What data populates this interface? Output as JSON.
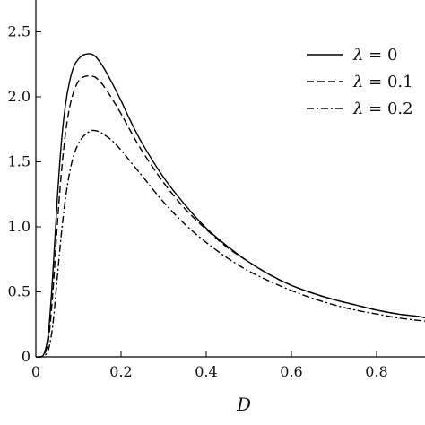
{
  "chart_data": {
    "type": "line",
    "title": "",
    "xlabel": "D",
    "ylabel": "",
    "xlim": [
      0,
      0.93
    ],
    "ylim": [
      0,
      2.6
    ],
    "x_ticks": [
      0,
      0.2,
      0.4,
      0.6,
      0.8
    ],
    "x_tick_labels": [
      "0",
      "0.2",
      "0.4",
      "0.6",
      "0.8"
    ],
    "y_ticks": [
      0,
      0.5,
      1.0,
      1.5,
      2.0,
      2.5
    ],
    "y_tick_labels": [
      "0",
      "0.5",
      "1.0",
      "1.5",
      "2.0",
      "2.5"
    ],
    "grid": false,
    "legend_position": "top-right",
    "series": [
      {
        "name": "λ = 0",
        "legend_symbol": "λ",
        "legend_value": "= 0",
        "line_style": "solid",
        "color": "#000000",
        "x": [
          0,
          0.01,
          0.02,
          0.03,
          0.04,
          0.05,
          0.06,
          0.07,
          0.08,
          0.09,
          0.1,
          0.11,
          0.12,
          0.13,
          0.14,
          0.15,
          0.16,
          0.18,
          0.2,
          0.22,
          0.25,
          0.3,
          0.35,
          0.4,
          0.45,
          0.5,
          0.55,
          0.6,
          0.65,
          0.7,
          0.75,
          0.8,
          0.85,
          0.9,
          0.93
        ],
        "y": [
          0,
          0.0,
          0.03,
          0.2,
          0.65,
          1.2,
          1.65,
          1.95,
          2.13,
          2.24,
          2.29,
          2.32,
          2.33,
          2.33,
          2.31,
          2.27,
          2.22,
          2.1,
          1.97,
          1.83,
          1.64,
          1.38,
          1.17,
          0.99,
          0.85,
          0.73,
          0.63,
          0.55,
          0.49,
          0.44,
          0.4,
          0.36,
          0.33,
          0.31,
          0.29
        ]
      },
      {
        "name": "λ = 0.1",
        "legend_symbol": "λ",
        "legend_value": "= 0.1",
        "line_style": "dashed",
        "color": "#000000",
        "x": [
          0,
          0.01,
          0.02,
          0.03,
          0.04,
          0.05,
          0.06,
          0.07,
          0.08,
          0.09,
          0.1,
          0.11,
          0.12,
          0.13,
          0.14,
          0.15,
          0.16,
          0.18,
          0.2,
          0.22,
          0.25,
          0.3,
          0.35,
          0.4,
          0.45,
          0.5,
          0.55,
          0.6,
          0.65,
          0.7,
          0.75,
          0.8,
          0.85,
          0.9,
          0.93
        ],
        "y": [
          0,
          0.0,
          0.02,
          0.14,
          0.5,
          1.0,
          1.42,
          1.73,
          1.93,
          2.05,
          2.12,
          2.15,
          2.16,
          2.16,
          2.15,
          2.12,
          2.08,
          1.98,
          1.87,
          1.75,
          1.58,
          1.34,
          1.14,
          0.98,
          0.84,
          0.73,
          0.63,
          0.55,
          0.49,
          0.44,
          0.4,
          0.36,
          0.33,
          0.31,
          0.29
        ]
      },
      {
        "name": "λ = 0.2",
        "legend_symbol": "λ",
        "legend_value": "= 0.2",
        "line_style": "dashdot",
        "color": "#000000",
        "x": [
          0,
          0.01,
          0.02,
          0.03,
          0.04,
          0.05,
          0.06,
          0.07,
          0.08,
          0.09,
          0.1,
          0.11,
          0.12,
          0.13,
          0.14,
          0.15,
          0.16,
          0.18,
          0.2,
          0.22,
          0.25,
          0.3,
          0.35,
          0.4,
          0.45,
          0.5,
          0.55,
          0.6,
          0.65,
          0.7,
          0.75,
          0.8,
          0.85,
          0.9,
          0.93
        ],
        "y": [
          0,
          0.0,
          0.01,
          0.06,
          0.25,
          0.6,
          0.95,
          1.23,
          1.43,
          1.56,
          1.64,
          1.69,
          1.72,
          1.74,
          1.74,
          1.73,
          1.71,
          1.66,
          1.59,
          1.51,
          1.39,
          1.19,
          1.02,
          0.88,
          0.76,
          0.66,
          0.58,
          0.51,
          0.45,
          0.4,
          0.36,
          0.33,
          0.3,
          0.28,
          0.27
        ]
      }
    ]
  }
}
